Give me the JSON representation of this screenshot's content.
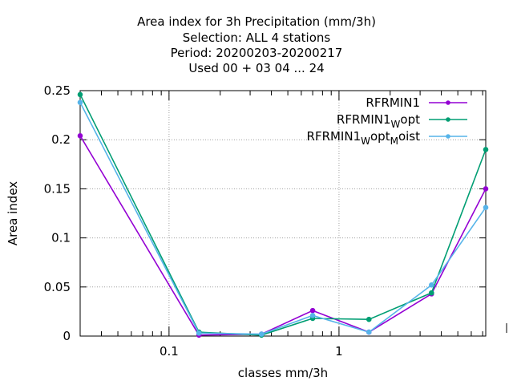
{
  "title_lines": [
    "Area index  for 3h Precipitation (mm/3h)",
    "Selection: ALL      4 stations",
    "Period: 20200203-20200217",
    "Used  00 + 03 04 ... 24"
  ],
  "colors": {
    "RFRMIN1": "#9400d3",
    "RFRMIN1_Wopt": "#009e73",
    "RFRMIN1_WoptMoist": "#56b4e9"
  },
  "chart_data": {
    "type": "line",
    "xlabel": "classes mm/3h",
    "ylabel": "Area index",
    "xscale": "log",
    "xlim": [
      0.03,
      7.3
    ],
    "ylim": [
      0,
      0.25
    ],
    "yticks": [
      "0",
      "0.05",
      "0.1",
      "0.15",
      "0.2",
      "0.25"
    ],
    "xticks": [
      "0.1",
      "1"
    ],
    "grid": true,
    "legend_position": "top-right",
    "x": [
      0.03,
      0.15,
      0.35,
      0.7,
      1.5,
      3.5,
      7.3
    ],
    "series": [
      {
        "name": "RFRMIN1",
        "legend": {
          "base": "RFRMIN1",
          "parts": []
        },
        "values": [
          0.204,
          0.001,
          0.002,
          0.026,
          0.004,
          0.043,
          0.15
        ]
      },
      {
        "name": "RFRMIN1_Wopt",
        "legend": {
          "base": "RFRMIN1",
          "parts": [
            [
              "W",
              "opt"
            ]
          ]
        },
        "values": [
          0.246,
          0.004,
          0.001,
          0.018,
          0.017,
          0.044,
          0.19
        ]
      },
      {
        "name": "RFRMIN1_WoptMoist",
        "legend": {
          "base": "RFRMIN1",
          "parts": [
            [
              "W",
              "opt"
            ],
            [
              "M",
              "oist"
            ]
          ]
        },
        "values": [
          0.238,
          0.003,
          0.002,
          0.021,
          0.004,
          0.052,
          0.131
        ]
      }
    ]
  }
}
